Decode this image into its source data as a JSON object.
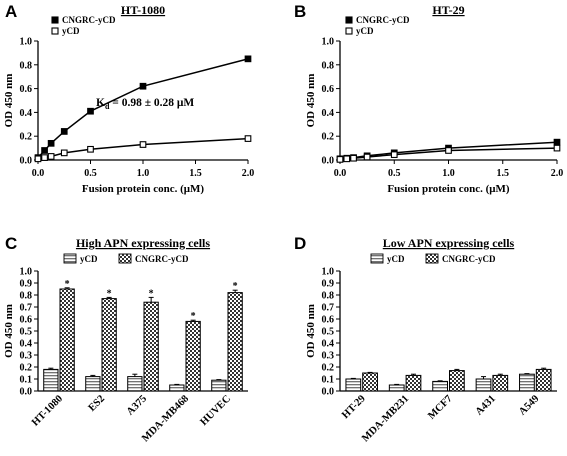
{
  "chart_data": [
    {
      "panel": "A",
      "type": "line",
      "title": "HT-1080",
      "xlabel": "Fusion protein conc. (μM)",
      "ylabel": "OD 450 nm",
      "xlim": [
        0,
        2.0
      ],
      "ylim": [
        0,
        1.0
      ],
      "xticks": [
        "0.0",
        "0.5",
        "1.0",
        "1.5",
        "2.0"
      ],
      "yticks": [
        "0.0",
        "0.2",
        "0.4",
        "0.6",
        "0.8",
        "1.0"
      ],
      "annotation": "K_d = 0.98 ± 0.28 μM",
      "legend_position": "top-left",
      "series": [
        {
          "name": "CNGRC-yCD",
          "marker": "filled-square",
          "x": [
            0,
            0.0625,
            0.125,
            0.25,
            0.5,
            1.0,
            2.0
          ],
          "y": [
            0.02,
            0.08,
            0.14,
            0.24,
            0.41,
            0.62,
            0.85
          ],
          "err": [
            0.005,
            0.005,
            0.01,
            0.01,
            0.02,
            0.015,
            0.01
          ]
        },
        {
          "name": "yCD",
          "marker": "open-square",
          "x": [
            0,
            0.0625,
            0.125,
            0.25,
            0.5,
            1.0,
            2.0
          ],
          "y": [
            0.01,
            0.02,
            0.03,
            0.06,
            0.09,
            0.13,
            0.18
          ],
          "err": [
            0.003,
            0.003,
            0.005,
            0.005,
            0.01,
            0.01,
            0.015
          ]
        }
      ]
    },
    {
      "panel": "B",
      "type": "line",
      "title": "HT-29",
      "xlabel": "Fusion protein conc. (μM)",
      "ylabel": "OD 450 nm",
      "xlim": [
        0,
        2.0
      ],
      "ylim": [
        0,
        1.0
      ],
      "xticks": [
        "0.0",
        "0.5",
        "1.0",
        "1.5",
        "2.0"
      ],
      "yticks": [
        "0.0",
        "0.2",
        "0.4",
        "0.6",
        "0.8",
        "1.0"
      ],
      "legend_position": "top-left",
      "series": [
        {
          "name": "CNGRC-yCD",
          "marker": "filled-square",
          "x": [
            0,
            0.0625,
            0.125,
            0.25,
            0.5,
            1.0,
            2.0
          ],
          "y": [
            0.01,
            0.015,
            0.02,
            0.035,
            0.06,
            0.1,
            0.15
          ],
          "err": [
            0.003,
            0.003,
            0.004,
            0.005,
            0.006,
            0.01,
            0.01
          ]
        },
        {
          "name": "yCD",
          "marker": "open-square",
          "x": [
            0,
            0.0625,
            0.125,
            0.25,
            0.5,
            1.0,
            2.0
          ],
          "y": [
            0.005,
            0.01,
            0.015,
            0.025,
            0.045,
            0.08,
            0.1
          ],
          "err": [
            0.003,
            0.003,
            0.004,
            0.005,
            0.006,
            0.008,
            0.008
          ]
        }
      ]
    },
    {
      "panel": "C",
      "type": "bar",
      "title": "High APN expressing cells",
      "ylabel": "OD 450 nm",
      "ylim": [
        0,
        1.0
      ],
      "yticks": [
        "0.0",
        "0.1",
        "0.2",
        "0.3",
        "0.4",
        "0.5",
        "0.6",
        "0.7",
        "0.8",
        "0.9",
        "1.0"
      ],
      "categories": [
        "HT-1080",
        "ES2",
        "A375",
        "MDA-MB468",
        "HUVEC"
      ],
      "legend_position": "top",
      "significance": "*",
      "series": [
        {
          "name": "yCD",
          "pattern": "horizontal-stripes",
          "values": [
            0.18,
            0.12,
            0.12,
            0.05,
            0.09
          ],
          "err": [
            0.01,
            0.01,
            0.02,
            0.005,
            0.005
          ]
        },
        {
          "name": "CNGRC-yCD",
          "pattern": "checker",
          "values": [
            0.85,
            0.77,
            0.74,
            0.58,
            0.82
          ],
          "err": [
            0.01,
            0.01,
            0.04,
            0.01,
            0.02
          ],
          "starred": [
            true,
            true,
            true,
            true,
            true
          ]
        }
      ]
    },
    {
      "panel": "D",
      "type": "bar",
      "title": "Low APN expressing cells",
      "ylabel": "OD 450 nm",
      "ylim": [
        0,
        1.0
      ],
      "yticks": [
        "0.0",
        "0.1",
        "0.2",
        "0.3",
        "0.4",
        "0.5",
        "0.6",
        "0.7",
        "0.8",
        "0.9",
        "1.0"
      ],
      "categories": [
        "HT-29",
        "MDA-MB231",
        "MCF7",
        "A431",
        "A549"
      ],
      "legend_position": "top",
      "series": [
        {
          "name": "yCD",
          "pattern": "horizontal-stripes",
          "values": [
            0.1,
            0.05,
            0.08,
            0.1,
            0.14
          ],
          "err": [
            0.005,
            0.005,
            0.005,
            0.02,
            0.005
          ]
        },
        {
          "name": "CNGRC-yCD",
          "pattern": "checker",
          "values": [
            0.15,
            0.13,
            0.17,
            0.13,
            0.18
          ],
          "err": [
            0.005,
            0.01,
            0.01,
            0.01,
            0.01
          ]
        }
      ]
    }
  ]
}
